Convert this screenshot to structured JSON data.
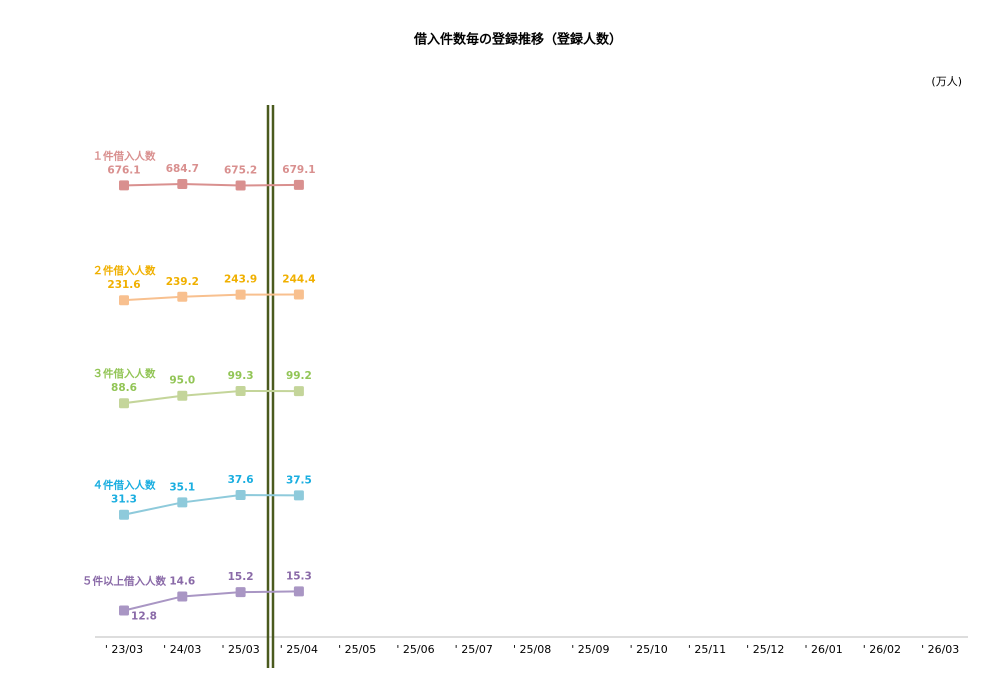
{
  "chart_data": {
    "type": "line",
    "title": "借入件数毎の登録推移（登録人数）",
    "unit_label": "(万人)",
    "categories": [
      "' 23/03",
      "' 24/03",
      "' 25/03",
      "' 25/04",
      "' 25/05",
      "' 25/06",
      "' 25/07",
      "' 25/08",
      "' 25/09",
      "' 25/10",
      "' 25/11",
      "' 25/12",
      "' 26/01",
      "' 26/02",
      "' 26/03"
    ],
    "ylim": [
      10,
      1500
    ],
    "log_scale": true,
    "series": [
      {
        "name": "１件借入人数",
        "color": "#d9908f",
        "label_color": "#d9908f",
        "values": [
          676.1,
          684.7,
          675.2,
          679.1,
          null,
          null,
          null,
          null,
          null,
          null,
          null,
          null,
          null,
          null,
          null
        ],
        "value_labels": [
          "676.1",
          "684.7",
          "675.2",
          "679.1",
          null,
          null,
          null,
          null,
          null,
          null,
          null,
          null,
          null,
          null,
          null
        ]
      },
      {
        "name": "２件借入人数",
        "color": "#f8c08f",
        "label_color": "#f0b000",
        "values": [
          231.6,
          239.2,
          243.9,
          244.4,
          null,
          null,
          null,
          null,
          null,
          null,
          null,
          null,
          null,
          null,
          null
        ],
        "value_labels": [
          "231.6",
          "239.2",
          "243.9",
          "244.4",
          null,
          null,
          null,
          null,
          null,
          null,
          null,
          null,
          null,
          null,
          null
        ]
      },
      {
        "name": "３件借入人数",
        "color": "#c4d59a",
        "label_color": "#92c556",
        "values": [
          88.6,
          95.0,
          99.3,
          99.2,
          null,
          null,
          null,
          null,
          null,
          null,
          null,
          null,
          null,
          null,
          null
        ],
        "value_labels": [
          "88.6",
          "95.0",
          "99.3",
          "99.2",
          null,
          null,
          null,
          null,
          null,
          null,
          null,
          null,
          null,
          null,
          null
        ]
      },
      {
        "name": "４件借入人数",
        "color": "#8ecadb",
        "label_color": "#1aaee0",
        "values": [
          31.3,
          35.1,
          37.6,
          37.5,
          null,
          null,
          null,
          null,
          null,
          null,
          null,
          null,
          null,
          null,
          null
        ],
        "value_labels": [
          "31.3",
          "35.1",
          "37.6",
          "37.5",
          null,
          null,
          null,
          null,
          null,
          null,
          null,
          null,
          null,
          null,
          null
        ]
      },
      {
        "name": "５件以上借入人数",
        "color": "#a996c4",
        "label_color": "#8a6aa8",
        "values": [
          12.8,
          14.6,
          15.2,
          15.3,
          null,
          null,
          null,
          null,
          null,
          null,
          null,
          null,
          null,
          null,
          null
        ],
        "value_labels": [
          "12.8",
          "14.6",
          "15.2",
          "15.3",
          null,
          null,
          null,
          null,
          null,
          null,
          null,
          null,
          null,
          null,
          null
        ]
      }
    ]
  }
}
